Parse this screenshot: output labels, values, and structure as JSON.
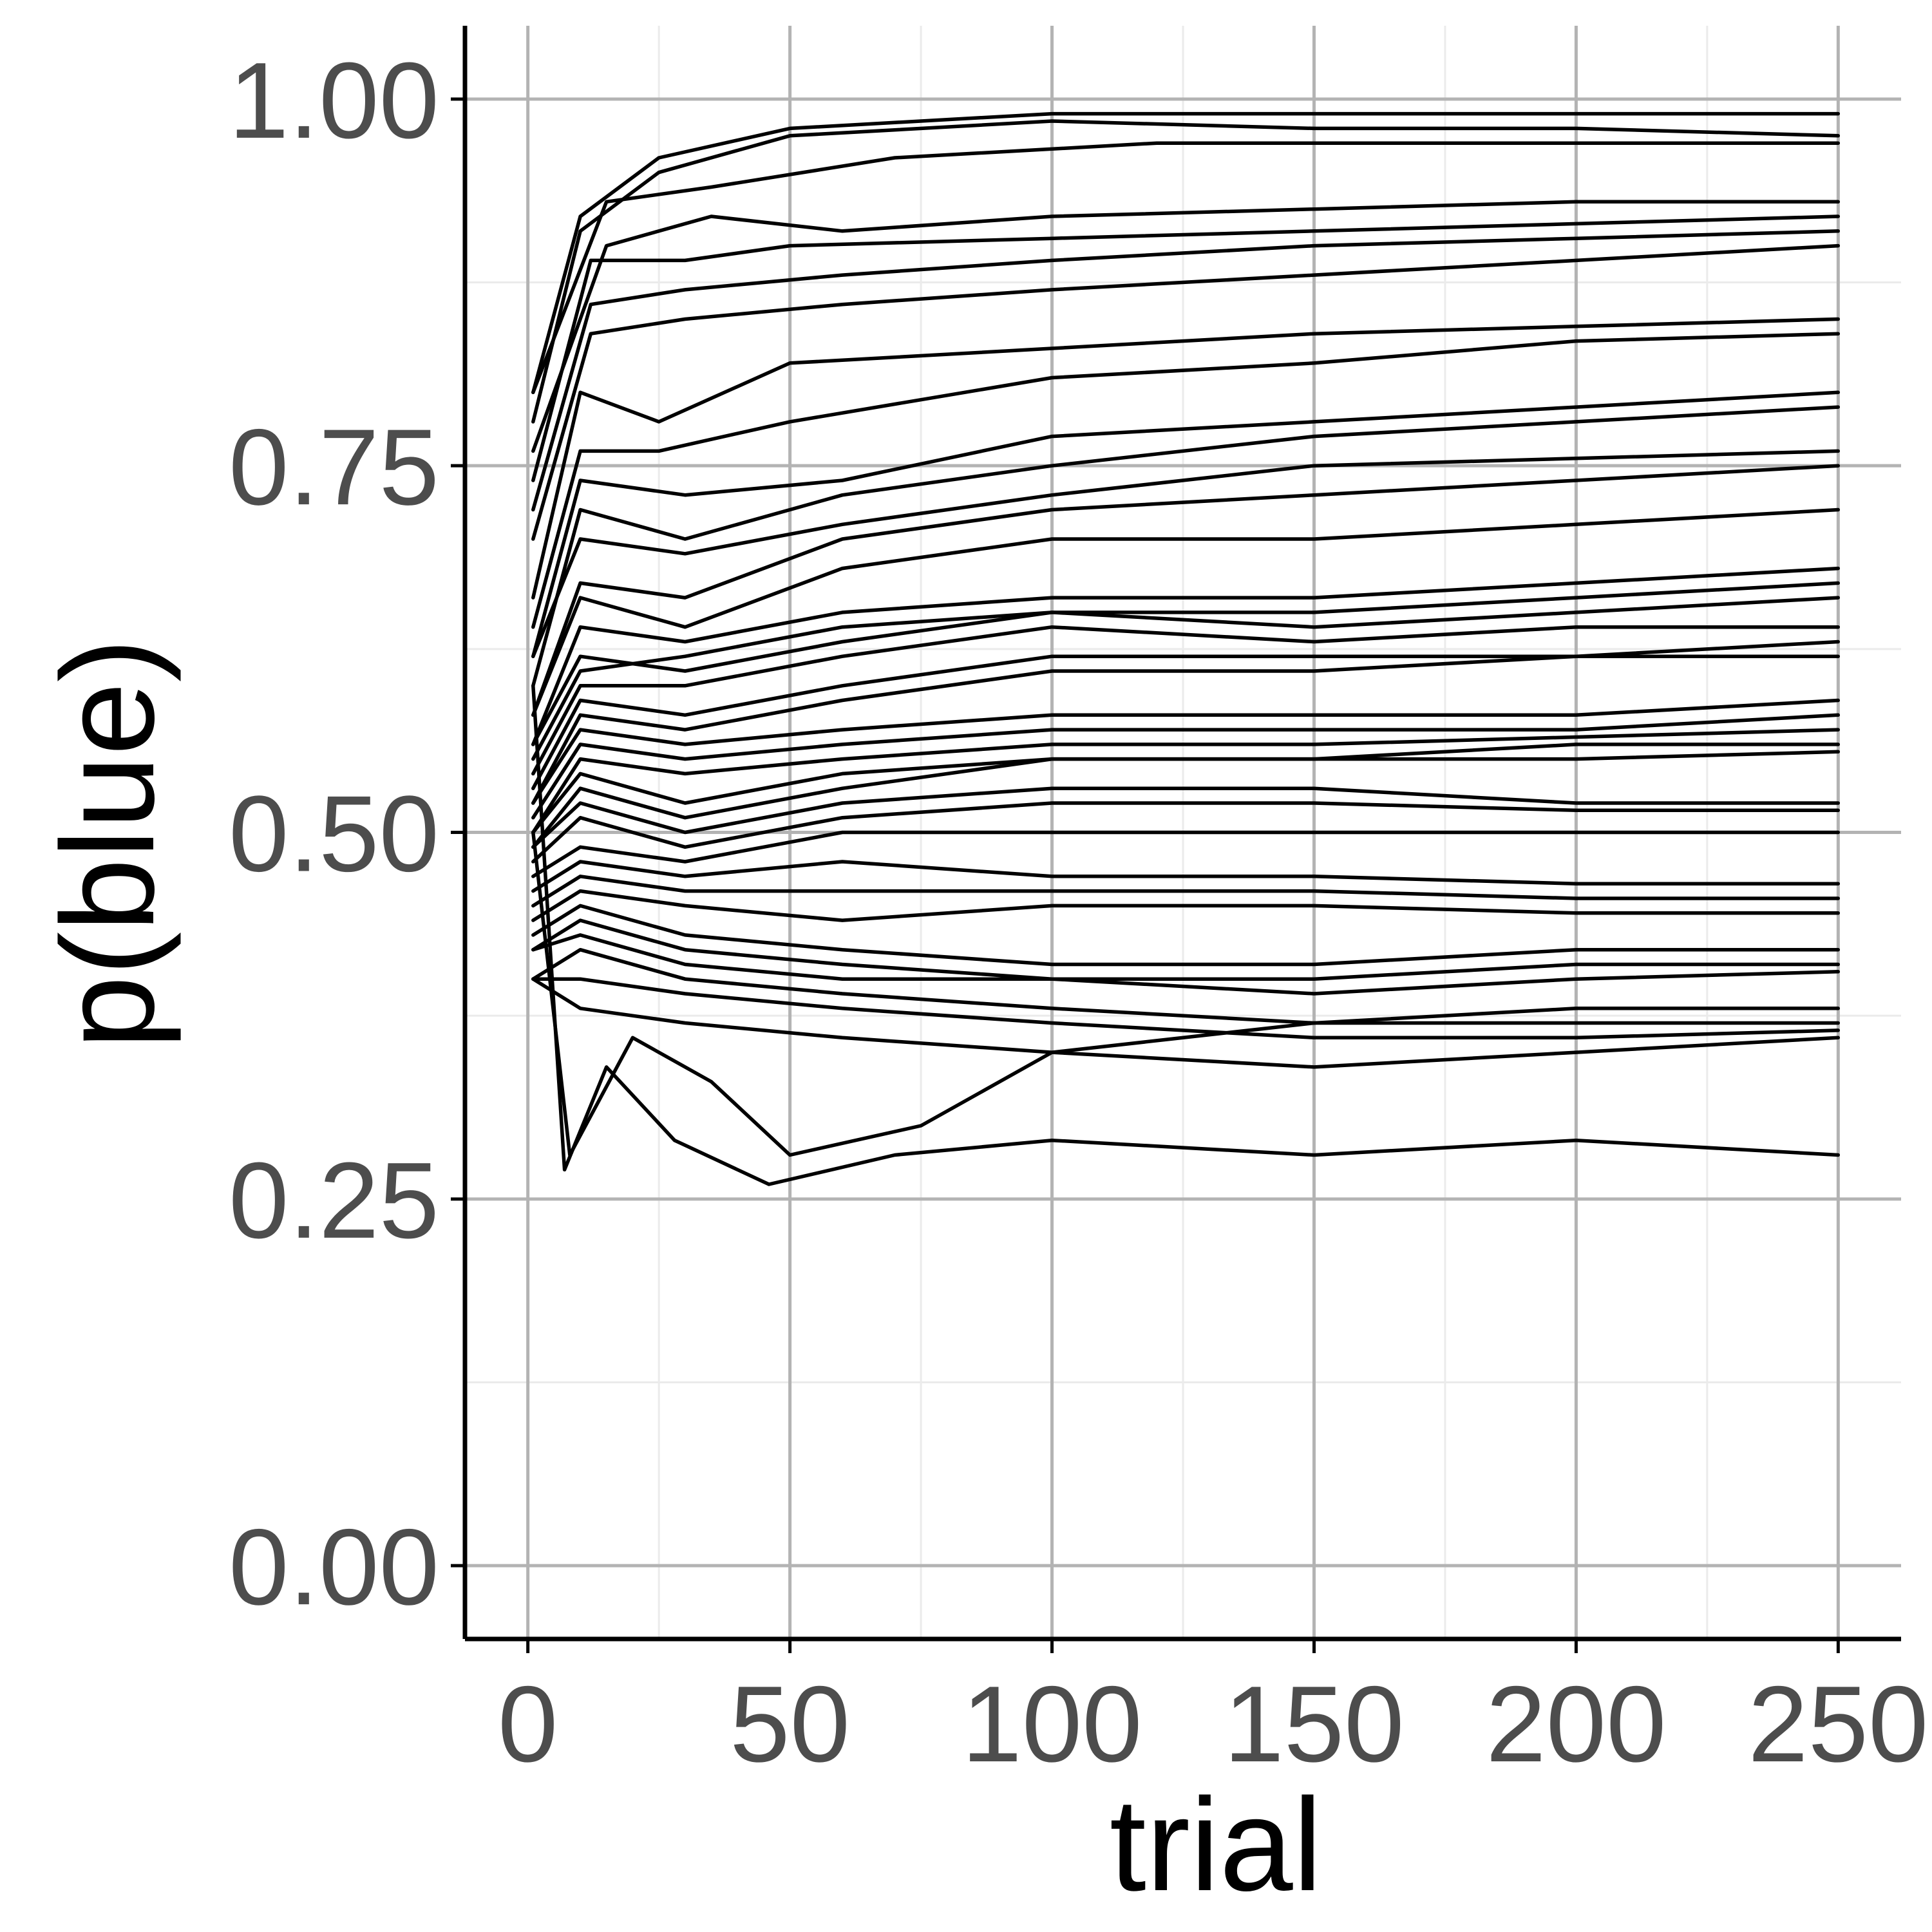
{
  "chart_data": {
    "type": "line",
    "title": "",
    "xlabel": "trial",
    "ylabel": "p(blue)",
    "xlim": [
      -12,
      262
    ],
    "ylim": [
      -0.05,
      1.05
    ],
    "x_ticks": [
      0,
      50,
      100,
      150,
      200,
      250
    ],
    "x_tick_labels": [
      "0",
      "50",
      "100",
      "150",
      "200",
      "250"
    ],
    "y_ticks": [
      0,
      0.25,
      0.5,
      0.75,
      1
    ],
    "y_tick_labels": [
      "0.00",
      "0.25",
      "0.50",
      "0.75",
      "1.00"
    ],
    "grid": true,
    "legend": "none",
    "colors": {
      "line": "#000000",
      "grid_major": "#b3b3b3",
      "grid_minor": "#ebebeb",
      "axis": "#000000",
      "tick_label": "#4d4d4d"
    },
    "series": [
      {
        "x": [
          1,
          10,
          25,
          50,
          100,
          150,
          200,
          250
        ],
        "y": [
          0.8,
          0.92,
          0.96,
          0.98,
          0.99,
          0.99,
          0.99,
          0.99
        ]
      },
      {
        "x": [
          1,
          10,
          25,
          50,
          100,
          150,
          200,
          250
        ],
        "y": [
          0.78,
          0.91,
          0.95,
          0.975,
          0.985,
          0.98,
          0.98,
          0.975
        ]
      },
      {
        "x": [
          1,
          15,
          35,
          70,
          120,
          170,
          220,
          250
        ],
        "y": [
          0.8,
          0.93,
          0.94,
          0.96,
          0.97,
          0.97,
          0.97,
          0.97
        ]
      },
      {
        "x": [
          1,
          15,
          35,
          60,
          100,
          150,
          200,
          250
        ],
        "y": [
          0.76,
          0.9,
          0.92,
          0.91,
          0.92,
          0.925,
          0.93,
          0.93
        ]
      },
      {
        "x": [
          1,
          12,
          30,
          50,
          100,
          150,
          200,
          250
        ],
        "y": [
          0.74,
          0.89,
          0.89,
          0.9,
          0.905,
          0.91,
          0.915,
          0.92
        ]
      },
      {
        "x": [
          1,
          12,
          30,
          60,
          100,
          150,
          200,
          250
        ],
        "y": [
          0.72,
          0.86,
          0.87,
          0.88,
          0.89,
          0.9,
          0.905,
          0.91
        ]
      },
      {
        "x": [
          1,
          12,
          30,
          60,
          100,
          150,
          200,
          250
        ],
        "y": [
          0.7,
          0.84,
          0.85,
          0.86,
          0.87,
          0.88,
          0.89,
          0.9
        ]
      },
      {
        "x": [
          1,
          10,
          25,
          50,
          100,
          150,
          200,
          250
        ],
        "y": [
          0.66,
          0.8,
          0.78,
          0.82,
          0.83,
          0.84,
          0.845,
          0.85
        ]
      },
      {
        "x": [
          1,
          10,
          25,
          50,
          100,
          150,
          200,
          250
        ],
        "y": [
          0.64,
          0.76,
          0.76,
          0.78,
          0.81,
          0.82,
          0.835,
          0.84
        ]
      },
      {
        "x": [
          1,
          10,
          30,
          60,
          100,
          150,
          200,
          250
        ],
        "y": [
          0.62,
          0.74,
          0.73,
          0.74,
          0.77,
          0.78,
          0.79,
          0.8
        ]
      },
      {
        "x": [
          1,
          10,
          30,
          60,
          100,
          150,
          200,
          250
        ],
        "y": [
          0.6,
          0.72,
          0.7,
          0.73,
          0.75,
          0.77,
          0.78,
          0.79
        ]
      },
      {
        "x": [
          1,
          10,
          30,
          60,
          100,
          150,
          200,
          250
        ],
        "y": [
          0.62,
          0.7,
          0.69,
          0.71,
          0.73,
          0.75,
          0.755,
          0.76
        ]
      },
      {
        "x": [
          1,
          10,
          30,
          60,
          100,
          150,
          200,
          250
        ],
        "y": [
          0.58,
          0.67,
          0.66,
          0.7,
          0.72,
          0.73,
          0.74,
          0.75
        ]
      },
      {
        "x": [
          1,
          10,
          30,
          60,
          100,
          150,
          200,
          250
        ],
        "y": [
          0.58,
          0.66,
          0.64,
          0.68,
          0.7,
          0.7,
          0.71,
          0.72
        ]
      },
      {
        "x": [
          1,
          10,
          30,
          60,
          100,
          150,
          200,
          250
        ],
        "y": [
          0.56,
          0.64,
          0.63,
          0.65,
          0.66,
          0.66,
          0.67,
          0.68
        ]
      },
      {
        "x": [
          1,
          10,
          30,
          60,
          100,
          150,
          200,
          250
        ],
        "y": [
          0.56,
          0.62,
          0.61,
          0.63,
          0.65,
          0.65,
          0.66,
          0.67
        ]
      },
      {
        "x": [
          1,
          10,
          30,
          60,
          100,
          150,
          200,
          250
        ],
        "y": [
          0.55,
          0.61,
          0.62,
          0.64,
          0.65,
          0.64,
          0.65,
          0.66
        ]
      },
      {
        "x": [
          1,
          10,
          30,
          60,
          100,
          150,
          200,
          250
        ],
        "y": [
          0.54,
          0.6,
          0.6,
          0.62,
          0.64,
          0.63,
          0.64,
          0.64
        ]
      },
      {
        "x": [
          1,
          10,
          30,
          60,
          100,
          150,
          200,
          250
        ],
        "y": [
          0.53,
          0.59,
          0.58,
          0.6,
          0.62,
          0.62,
          0.62,
          0.63
        ]
      },
      {
        "x": [
          1,
          10,
          30,
          60,
          100,
          150,
          200,
          250
        ],
        "y": [
          0.52,
          0.58,
          0.57,
          0.59,
          0.61,
          0.61,
          0.62,
          0.62
        ]
      },
      {
        "x": [
          1,
          10,
          30,
          60,
          100,
          150,
          200,
          250
        ],
        "y": [
          0.52,
          0.57,
          0.56,
          0.57,
          0.58,
          0.58,
          0.58,
          0.59
        ]
      },
      {
        "x": [
          1,
          10,
          30,
          60,
          100,
          150,
          200,
          250
        ],
        "y": [
          0.51,
          0.56,
          0.55,
          0.56,
          0.57,
          0.57,
          0.57,
          0.58
        ]
      },
      {
        "x": [
          1,
          10,
          30,
          60,
          100,
          150,
          200,
          250
        ],
        "y": [
          0.5,
          0.55,
          0.54,
          0.55,
          0.56,
          0.56,
          0.565,
          0.57
        ]
      },
      {
        "x": [
          1,
          10,
          30,
          60,
          100,
          150,
          200,
          250
        ],
        "y": [
          0.5,
          0.54,
          0.52,
          0.54,
          0.55,
          0.55,
          0.56,
          0.56
        ]
      },
      {
        "x": [
          1,
          10,
          30,
          60,
          100,
          150,
          200,
          250
        ],
        "y": [
          0.49,
          0.53,
          0.51,
          0.53,
          0.55,
          0.55,
          0.55,
          0.555
        ]
      },
      {
        "x": [
          1,
          10,
          30,
          60,
          100,
          150,
          200,
          250
        ],
        "y": [
          0.49,
          0.52,
          0.5,
          0.52,
          0.53,
          0.53,
          0.52,
          0.52
        ]
      },
      {
        "x": [
          1,
          10,
          30,
          60,
          100,
          150,
          200,
          250
        ],
        "y": [
          0.48,
          0.51,
          0.49,
          0.51,
          0.52,
          0.52,
          0.515,
          0.515
        ]
      },
      {
        "x": [
          1,
          10,
          30,
          60,
          100,
          150,
          200,
          250
        ],
        "y": [
          0.47,
          0.49,
          0.48,
          0.5,
          0.5,
          0.5,
          0.5,
          0.5
        ]
      },
      {
        "x": [
          1,
          10,
          30,
          60,
          100,
          150,
          200,
          250
        ],
        "y": [
          0.46,
          0.48,
          0.47,
          0.48,
          0.47,
          0.47,
          0.465,
          0.465
        ]
      },
      {
        "x": [
          1,
          10,
          30,
          60,
          100,
          150,
          200,
          250
        ],
        "y": [
          0.45,
          0.47,
          0.46,
          0.46,
          0.46,
          0.46,
          0.455,
          0.455
        ]
      },
      {
        "x": [
          1,
          10,
          30,
          60,
          100,
          150,
          200,
          250
        ],
        "y": [
          0.44,
          0.46,
          0.45,
          0.44,
          0.45,
          0.45,
          0.445,
          0.445
        ]
      },
      {
        "x": [
          1,
          10,
          30,
          60,
          100,
          150,
          200,
          250
        ],
        "y": [
          0.43,
          0.45,
          0.43,
          0.42,
          0.41,
          0.41,
          0.42,
          0.42
        ]
      },
      {
        "x": [
          1,
          10,
          30,
          60,
          100,
          150,
          200,
          250
        ],
        "y": [
          0.42,
          0.44,
          0.42,
          0.41,
          0.4,
          0.4,
          0.41,
          0.41
        ]
      },
      {
        "x": [
          1,
          10,
          30,
          60,
          100,
          150,
          200,
          250
        ],
        "y": [
          0.42,
          0.43,
          0.41,
          0.4,
          0.4,
          0.39,
          0.4,
          0.405
        ]
      },
      {
        "x": [
          1,
          10,
          30,
          60,
          100,
          150,
          200,
          250
        ],
        "y": [
          0.4,
          0.42,
          0.4,
          0.39,
          0.38,
          0.37,
          0.37,
          0.37
        ]
      },
      {
        "x": [
          1,
          10,
          30,
          60,
          100,
          150,
          200,
          250
        ],
        "y": [
          0.4,
          0.4,
          0.39,
          0.38,
          0.37,
          0.36,
          0.36,
          0.365
        ]
      },
      {
        "x": [
          1,
          10,
          30,
          60,
          100,
          150,
          200,
          250
        ],
        "y": [
          0.4,
          0.38,
          0.37,
          0.36,
          0.35,
          0.34,
          0.35,
          0.36
        ]
      },
      {
        "x": [
          1,
          8,
          20,
          35,
          50,
          75,
          100,
          150,
          200,
          250
        ],
        "y": [
          0.5,
          0.28,
          0.36,
          0.33,
          0.28,
          0.3,
          0.35,
          0.37,
          0.38,
          0.38
        ]
      },
      {
        "x": [
          1,
          7,
          15,
          28,
          46,
          70,
          100,
          150,
          200,
          250
        ],
        "y": [
          0.6,
          0.27,
          0.34,
          0.29,
          0.26,
          0.28,
          0.29,
          0.28,
          0.29,
          0.28
        ]
      }
    ]
  }
}
